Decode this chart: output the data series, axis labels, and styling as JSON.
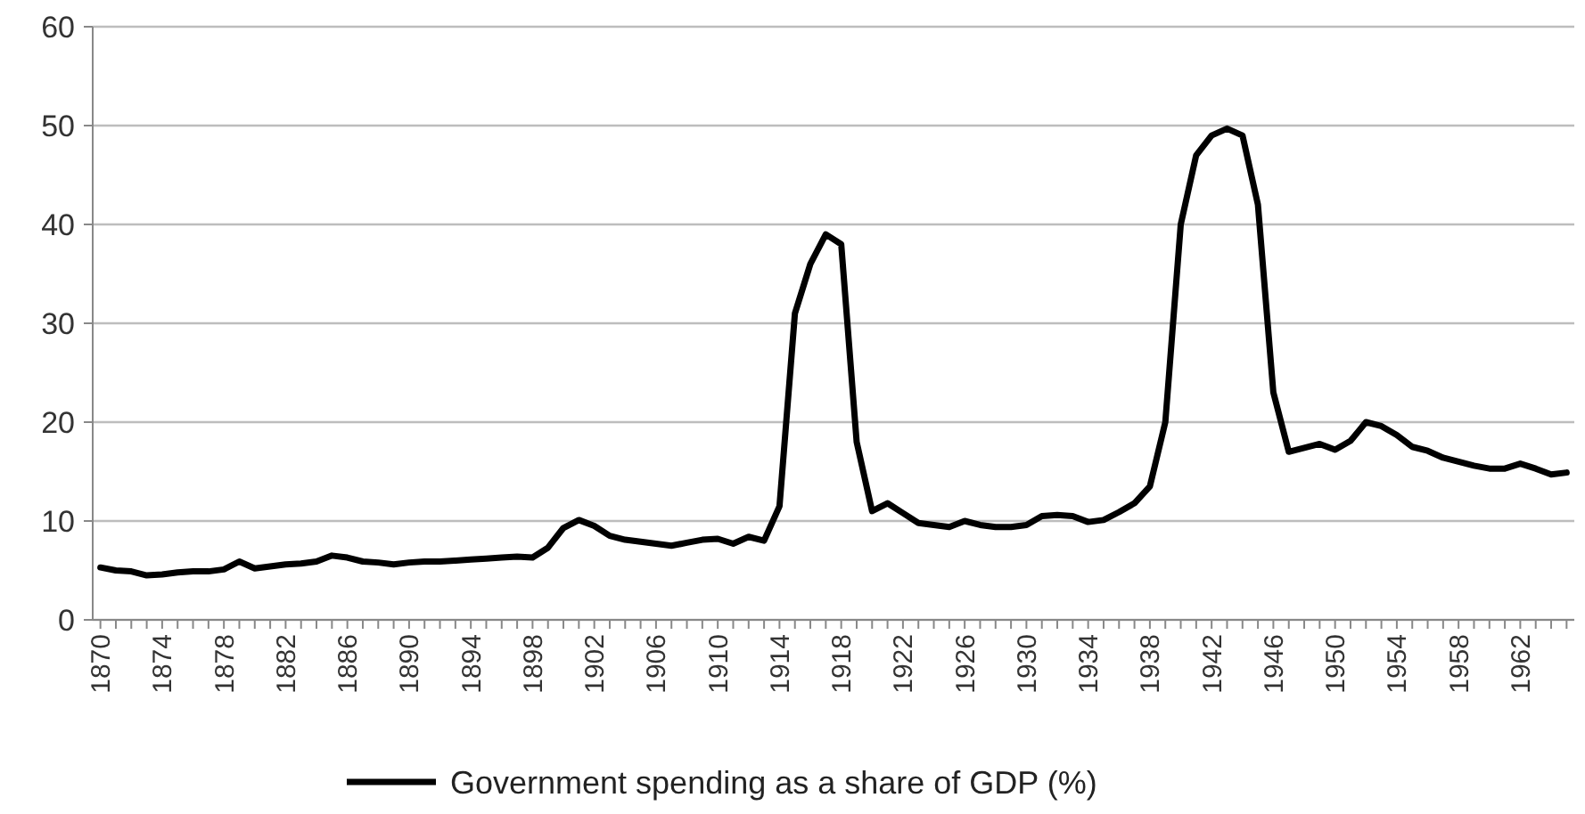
{
  "chart_data": {
    "type": "line",
    "x": [
      1870,
      1871,
      1872,
      1873,
      1874,
      1875,
      1876,
      1877,
      1878,
      1879,
      1880,
      1881,
      1882,
      1883,
      1884,
      1885,
      1886,
      1887,
      1888,
      1889,
      1890,
      1891,
      1892,
      1893,
      1894,
      1895,
      1896,
      1897,
      1898,
      1899,
      1900,
      1901,
      1902,
      1903,
      1904,
      1905,
      1906,
      1907,
      1908,
      1909,
      1910,
      1911,
      1912,
      1913,
      1914,
      1915,
      1916,
      1917,
      1918,
      1919,
      1920,
      1921,
      1922,
      1923,
      1924,
      1925,
      1926,
      1927,
      1928,
      1929,
      1930,
      1931,
      1932,
      1933,
      1934,
      1935,
      1936,
      1937,
      1938,
      1939,
      1940,
      1941,
      1942,
      1943,
      1944,
      1945,
      1946,
      1947,
      1948,
      1949,
      1950,
      1951,
      1952,
      1953,
      1954,
      1955,
      1956,
      1957,
      1958,
      1959,
      1960,
      1961,
      1962,
      1963,
      1964,
      1965
    ],
    "series": [
      {
        "name": "Government spending as a share of GDP (%)",
        "color": "#000000",
        "values": [
          5.3,
          5.0,
          4.9,
          4.5,
          4.6,
          4.8,
          4.9,
          4.9,
          5.1,
          5.9,
          5.2,
          5.4,
          5.6,
          5.7,
          5.9,
          6.5,
          6.3,
          5.9,
          5.8,
          5.6,
          5.8,
          5.9,
          5.9,
          6.0,
          6.1,
          6.2,
          6.3,
          6.4,
          6.3,
          7.3,
          9.3,
          10.1,
          9.5,
          8.5,
          8.1,
          7.9,
          7.7,
          7.5,
          7.8,
          8.1,
          8.2,
          7.7,
          8.4,
          8.0,
          11.5,
          31,
          36,
          39,
          38,
          18,
          11,
          11.8,
          10.8,
          9.8,
          9.6,
          9.4,
          10.0,
          9.6,
          9.4,
          9.4,
          9.6,
          10.5,
          10.6,
          10.5,
          9.9,
          10.1,
          10.9,
          11.8,
          13.5,
          20,
          40,
          47,
          49,
          49.7,
          49,
          42,
          23,
          17,
          17.4,
          17.8,
          17.2,
          18.1,
          20,
          19.6,
          18.7,
          17.5,
          17.1,
          16.4,
          16,
          15.6,
          15.3,
          15.3,
          15.8,
          15.3,
          14.7,
          14.9
        ]
      }
    ],
    "xlim": [
      1869.5,
      1965.5
    ],
    "xticks": [
      1870,
      1874,
      1878,
      1882,
      1886,
      1890,
      1894,
      1898,
      1902,
      1906,
      1910,
      1914,
      1918,
      1922,
      1926,
      1930,
      1934,
      1938,
      1942,
      1946,
      1950,
      1954,
      1958,
      1962
    ],
    "ylim": [
      0,
      60
    ],
    "yticks": [
      0,
      10,
      20,
      30,
      40,
      50,
      60
    ],
    "grid": "y",
    "legend": "bottom",
    "marker": "none",
    "line_style": "solid"
  }
}
